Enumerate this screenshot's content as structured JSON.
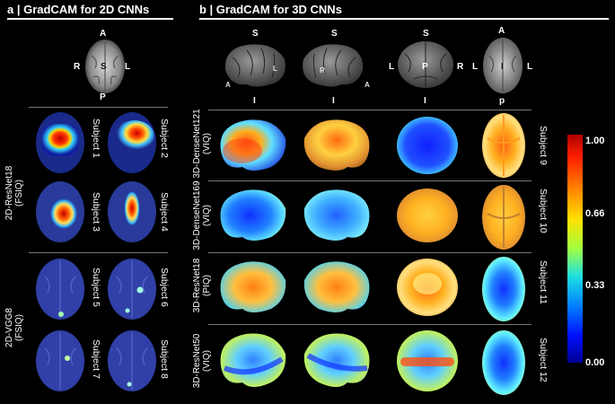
{
  "panel_a": {
    "title": "a | GradCAM for 2D CNNs",
    "orientation": {
      "top": "A",
      "left": "R",
      "center": "S",
      "right": "L",
      "bottom": "P"
    },
    "model1": {
      "name": "2D-ResNet18",
      "target": "(FSIQ)"
    },
    "model2": {
      "name": "2D-VGG8",
      "target": "(FSIQ)"
    },
    "subjects": [
      "Subject 1",
      "Subject 2",
      "Subject 3",
      "Subject 4",
      "Subject 5",
      "Subject 6",
      "Subject 7",
      "Subject 8"
    ]
  },
  "panel_b": {
    "title": "b | GradCAM for 3D CNNs",
    "views": [
      {
        "top": "S",
        "left": "",
        "right": "",
        "inner_left": "A",
        "inner_right": "L",
        "bottom": "I"
      },
      {
        "top": "S",
        "left": "",
        "right": "",
        "inner_left": "R",
        "inner_right": "A",
        "bottom": "I"
      },
      {
        "top": "S",
        "left": "L",
        "right": "R",
        "center": "P",
        "bottom": "I"
      },
      {
        "top": "A",
        "left": "L",
        "right": "L",
        "center": "I",
        "bottom": "p"
      }
    ],
    "models": [
      {
        "name": "3D-DenseNet121",
        "target": "(VIQ)",
        "subject": "Subject 9"
      },
      {
        "name": "3D-DenseNet169",
        "target": "(VIQ)",
        "subject": "Subject 10"
      },
      {
        "name": "3D-ResNet18",
        "target": "(PIQ)",
        "subject": "Subject 11"
      },
      {
        "name": "3D-ResNet50",
        "target": "(VIQ)",
        "subject": "Subject 12"
      }
    ]
  },
  "colorbar": {
    "ticks": [
      "1.00",
      "0.66",
      "0.33",
      "0.00"
    ],
    "colors": [
      "#b00000",
      "#ff2000",
      "#ff8c00",
      "#ffe000",
      "#a0ff40",
      "#20e0e0",
      "#0080ff",
      "#0010ff",
      "#000090"
    ]
  }
}
